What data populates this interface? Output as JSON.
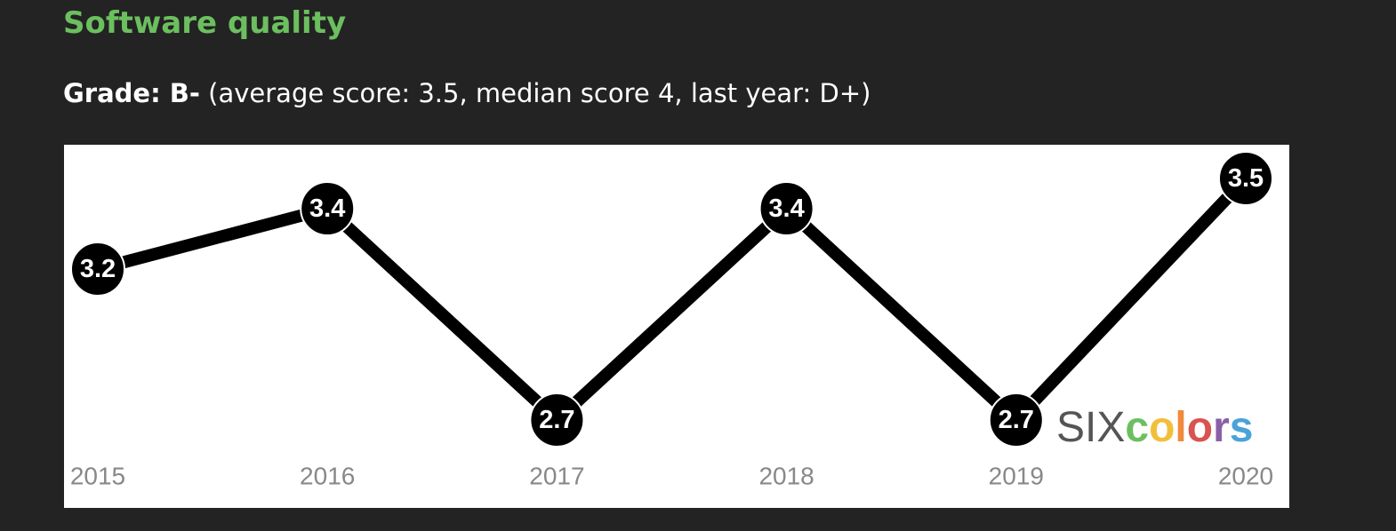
{
  "heading": "Software quality",
  "grade_label": "Grade: B-",
  "grade_detail": "(average score: 3.5, median score 4, last year: D+)",
  "logo": {
    "plain": "SIX",
    "word": "colors"
  },
  "chart_data": {
    "type": "line",
    "categories": [
      "2015",
      "2016",
      "2017",
      "2018",
      "2019",
      "2020"
    ],
    "values": [
      3.2,
      3.4,
      2.7,
      3.4,
      2.7,
      3.5
    ],
    "color": "#000000"
  }
}
